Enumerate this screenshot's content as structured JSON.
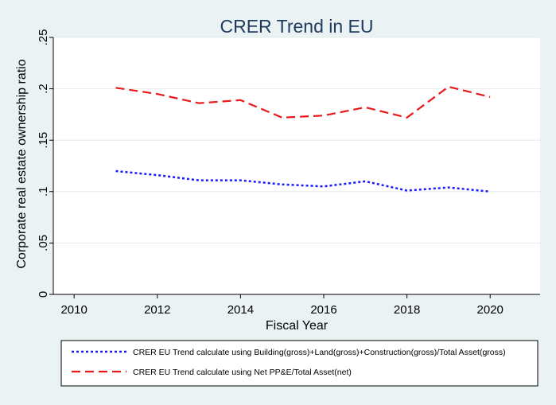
{
  "chart_data": {
    "type": "line",
    "title": "CRER Trend in EU",
    "xlabel": "Fiscal Year",
    "ylabel": "Corporate real estate ownership ratio",
    "xlim": [
      2009.5,
      2021.2
    ],
    "ylim": [
      0,
      0.25
    ],
    "x_ticks": [
      2010,
      2012,
      2014,
      2016,
      2018,
      2020
    ],
    "x_tick_labels": [
      "2010",
      "2012",
      "2014",
      "2016",
      "2018",
      "2020"
    ],
    "y_ticks": [
      0,
      0.05,
      0.1,
      0.15,
      0.2,
      0.25
    ],
    "y_tick_labels": [
      "0",
      ".05",
      ".1",
      ".15",
      ".2",
      ".25"
    ],
    "grid": "horizontal",
    "legend_position": "bottom",
    "x": [
      2011,
      2012,
      2013,
      2014,
      2015,
      2016,
      2017,
      2018,
      2019,
      2020
    ],
    "series": [
      {
        "name": "CRER EU Trend calculate using Building(gross)+Land(gross)+Construction(gross)/Total Asset(gross)",
        "color": "#1a1aff",
        "style": "dotted",
        "values": [
          0.12,
          0.116,
          0.111,
          0.111,
          0.107,
          0.105,
          0.11,
          0.101,
          0.104,
          0.1
        ]
      },
      {
        "name": "CRER EU Trend calculate using Net PP&E/Total Asset(net)",
        "color": "#e8191b",
        "style": "dashed",
        "values": [
          0.201,
          0.195,
          0.186,
          0.189,
          0.172,
          0.174,
          0.182,
          0.172,
          0.202,
          0.192
        ]
      }
    ]
  }
}
